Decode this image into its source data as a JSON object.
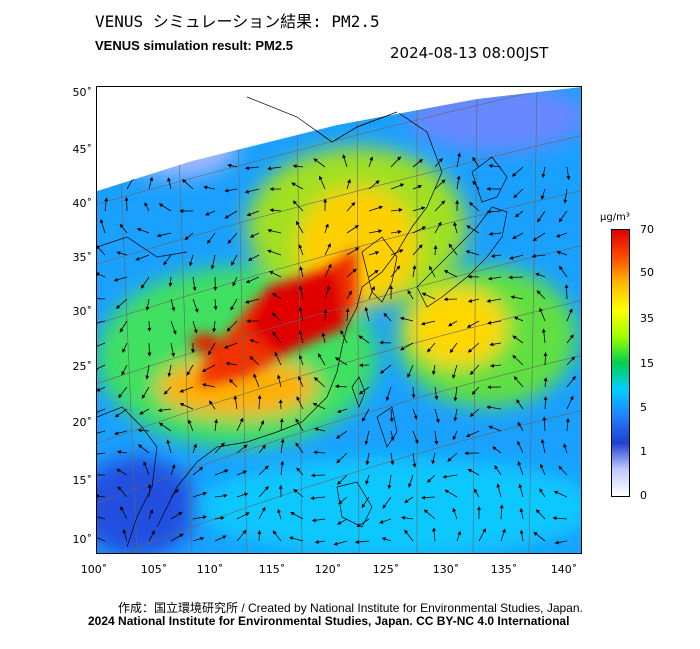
{
  "header": {
    "title_jp": "VENUS シミュレーション結果: PM2.5",
    "title_en": "VENUS simulation result: PM2.5",
    "timestamp": "2024-08-13 08:00JST"
  },
  "map": {
    "lat_ticks": [
      "50˚",
      "45˚",
      "40˚",
      "35˚",
      "30˚",
      "25˚",
      "20˚",
      "15˚",
      "10˚"
    ],
    "lon_ticks": [
      "100˚",
      "105˚",
      "110˚",
      "115˚",
      "120˚",
      "125˚",
      "130˚",
      "135˚",
      "140˚"
    ],
    "background_color": "#ffffff"
  },
  "colorbar": {
    "unit": "μg/m³",
    "labels": [
      "70",
      "50",
      "35",
      "15",
      "5",
      "1",
      "0"
    ],
    "colors": [
      "#e00000",
      "#ff4a00",
      "#ffb800",
      "#ffff00",
      "#a0ff00",
      "#00d050",
      "#00d0ff",
      "#2080ff",
      "#2040d0",
      "#c0c8ff",
      "#ffffff"
    ]
  },
  "footer": {
    "credit": "作成：国立環境研究所 / Created by National Institute for Environmental Studies, Japan.",
    "license": "2024 National Institute for Environmental Studies, Japan. CC BY-NC 4.0 International"
  }
}
